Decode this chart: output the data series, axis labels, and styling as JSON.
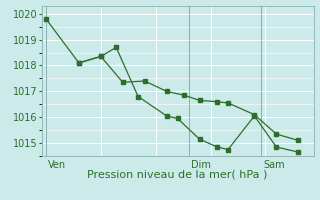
{
  "line1_x": [
    0,
    1.5,
    2.5,
    3.2,
    4.2,
    5.5,
    6.0,
    7.0,
    7.8,
    8.3,
    9.5,
    10.5,
    11.5
  ],
  "line1_y": [
    1019.8,
    1018.1,
    1018.35,
    1018.7,
    1016.8,
    1016.05,
    1015.95,
    1015.15,
    1014.85,
    1014.75,
    1016.05,
    1014.85,
    1014.65
  ],
  "line2_x": [
    1.5,
    2.5,
    3.5,
    4.5,
    5.5,
    6.3,
    7.0,
    7.8,
    8.3,
    9.5,
    10.5,
    11.5
  ],
  "line2_y": [
    1018.1,
    1018.35,
    1017.35,
    1017.4,
    1017.0,
    1016.85,
    1016.65,
    1016.6,
    1016.55,
    1016.1,
    1015.35,
    1015.1
  ],
  "line_color": "#2d6e2d",
  "bg_color": "#cceaea",
  "grid_color": "#ffffff",
  "xlabel": "Pression niveau de la mer( hPa )",
  "ven_x": 0.0,
  "dim_x": 6.5,
  "sam_x": 9.8,
  "xlim_min": -0.2,
  "xlim_max": 12.2,
  "ylim_min": 1014.5,
  "ylim_max": 1020.3,
  "yticks": [
    1015,
    1016,
    1017,
    1018,
    1019,
    1020
  ],
  "xlabel_fontsize": 8,
  "tick_fontsize": 7,
  "day_fontsize": 7,
  "linewidth": 0.9,
  "markersize": 2.5
}
